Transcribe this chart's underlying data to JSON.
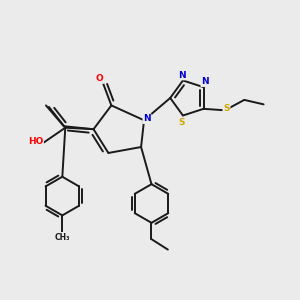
{
  "bg_color": "#ebebeb",
  "bond_color": "#1a1a1a",
  "atom_colors": {
    "O": "#ff0000",
    "N": "#0000cc",
    "S": "#ccaa00",
    "H": "#555555",
    "C": "#1a1a1a"
  },
  "lw": 1.4,
  "fs": 6.5
}
